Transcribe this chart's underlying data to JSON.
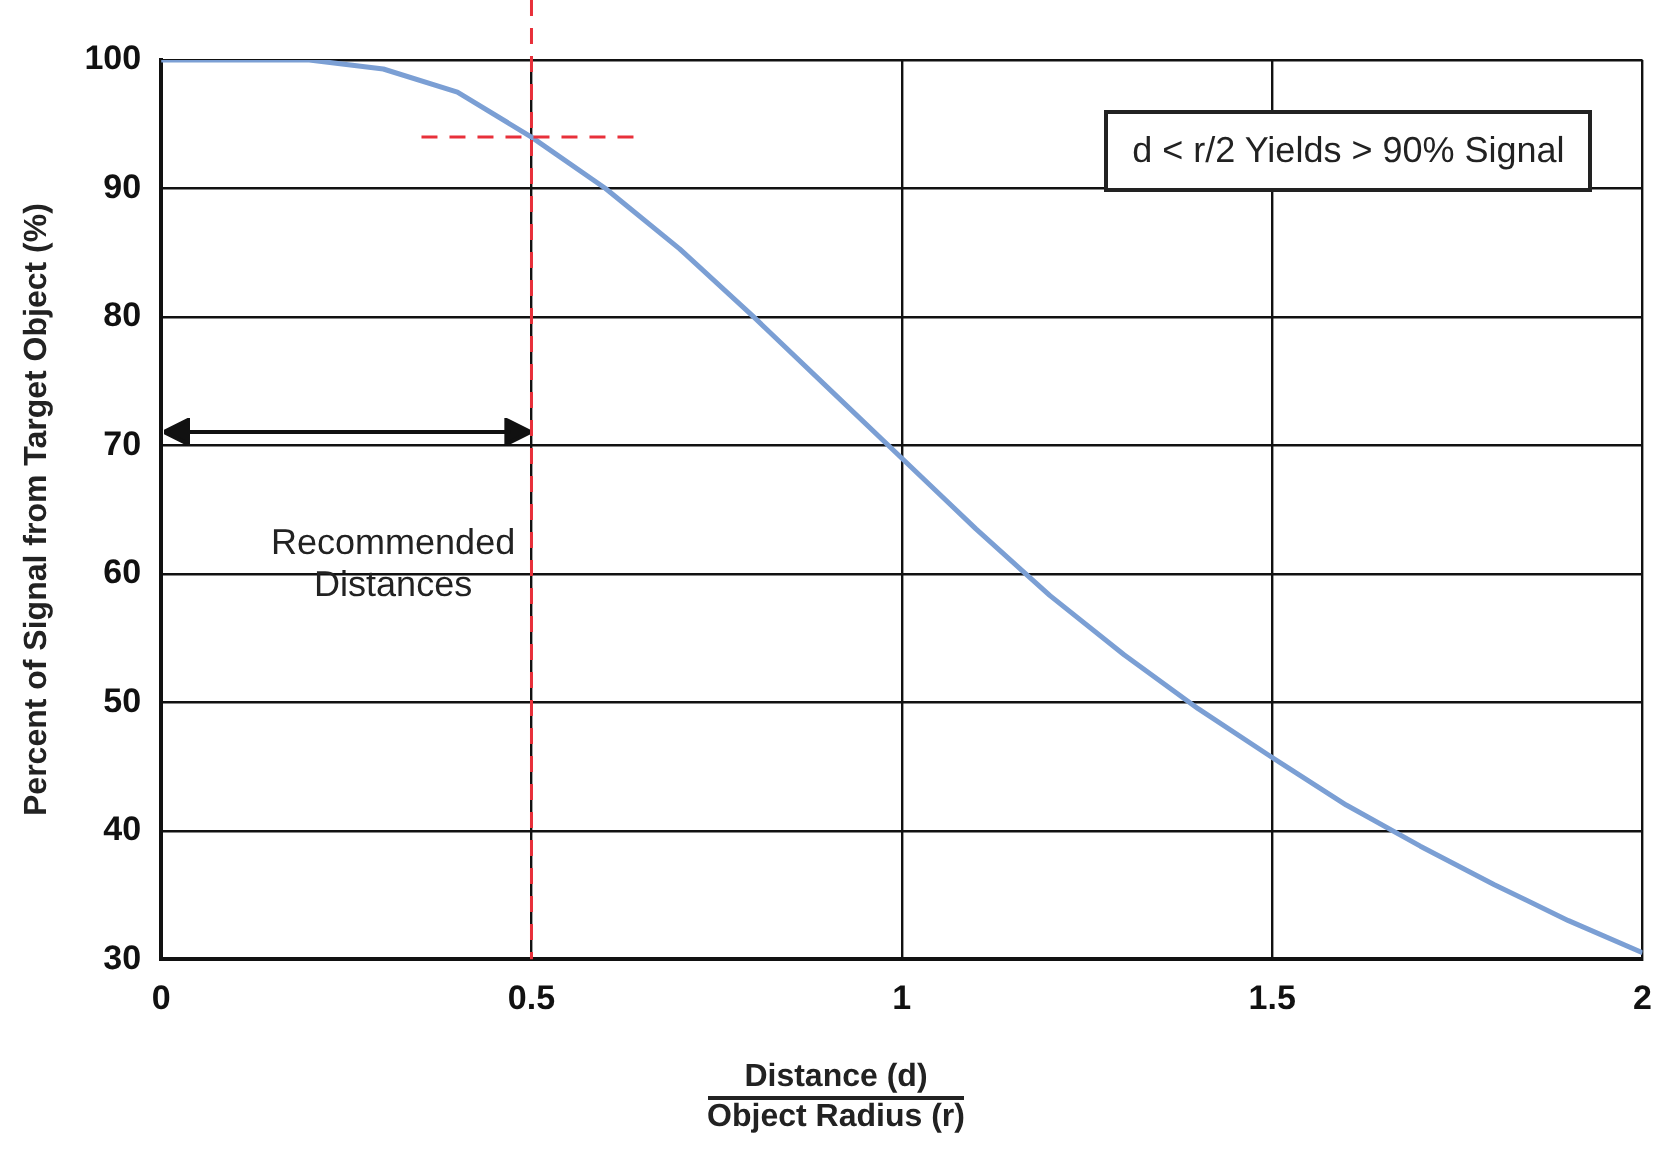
{
  "chart_data": {
    "type": "line",
    "xlabel": "Distance (d)\nObject Radius (r)",
    "ylabel": "Percent of Signal from Target Object (%)",
    "x": [
      0,
      0.1,
      0.2,
      0.3,
      0.4,
      0.5,
      0.6,
      0.7,
      0.8,
      0.9,
      1,
      1.1,
      1.2,
      1.3,
      1.4,
      1.5,
      1.6,
      1.7,
      1.8,
      1.9,
      2
    ],
    "series": [
      {
        "color": "#7b9fd4",
        "values": [
          100,
          100,
          100,
          99.3,
          97.5,
          94,
          90,
          85.3,
          80,
          74.5,
          69,
          63.5,
          58.3,
          53.7,
          49.5,
          45.7,
          42,
          38.8,
          35.8,
          33,
          30.5
        ]
      }
    ],
    "xlim": [
      0,
      2
    ],
    "xticks": [
      0,
      0.5,
      1,
      1.5,
      2
    ],
    "ylim": [
      30,
      100
    ],
    "yticks": [
      30,
      40,
      50,
      60,
      70,
      80,
      90,
      100
    ],
    "grid": true,
    "legend": false,
    "marker": "none",
    "line_style": "solid",
    "ref_lines": [
      {
        "axis": "x",
        "value": 0.5,
        "color": "#e8303a",
        "line_style": "dashed"
      },
      {
        "axis": "y",
        "value": 94,
        "color": "#e8303a",
        "line_style": "dashed"
      }
    ],
    "annotations": [
      "d < r/2 Yields > 90% Signal",
      "Recommended Distances"
    ]
  }
}
